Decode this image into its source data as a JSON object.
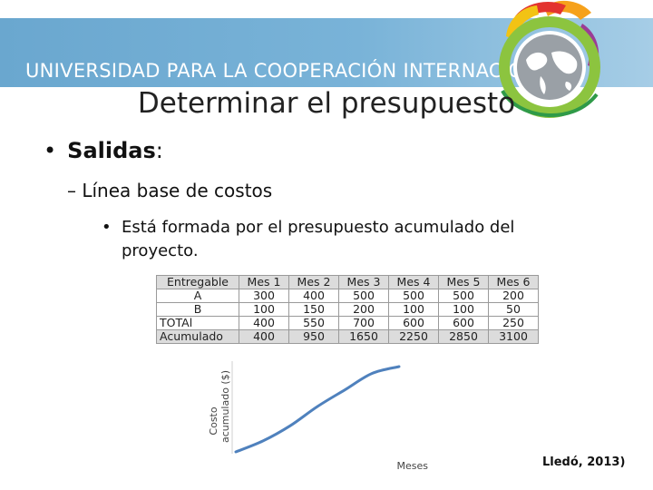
{
  "banner": {
    "title": "UNIVERSIDAD PARA LA COOPERACIÓN INTERNACIONAL"
  },
  "slide": {
    "title": "Determinar el presupuesto",
    "bullet1_label": "Salidas",
    "bullet1_colon": ":",
    "bullet2": "– Línea base de costos",
    "bullet3": "Está formada por el presupuesto acumulado del proyecto."
  },
  "table": {
    "headers": [
      "Entregable",
      "Mes 1",
      "Mes 2",
      "Mes 3",
      "Mes 4",
      "Mes 5",
      "Mes 6"
    ],
    "rows": [
      [
        "A",
        "300",
        "400",
        "500",
        "500",
        "500",
        "200"
      ],
      [
        "B",
        "100",
        "150",
        "200",
        "100",
        "100",
        "50"
      ],
      [
        "TOTAl",
        "400",
        "550",
        "700",
        "600",
        "600",
        "250"
      ],
      [
        "Acumulado",
        "400",
        "950",
        "1650",
        "2250",
        "2850",
        "3100"
      ]
    ]
  },
  "chart_data": {
    "type": "line",
    "ylabel_line1": "Costo",
    "ylabel_line2": "acumulado ($)",
    "xlabel": "Meses",
    "x": [
      0,
      1,
      2,
      3,
      4,
      5,
      6
    ],
    "y": [
      0,
      400,
      950,
      1650,
      2250,
      2850,
      3100
    ],
    "color": "#4f81bd"
  },
  "credit": "Lledó, 2013)"
}
